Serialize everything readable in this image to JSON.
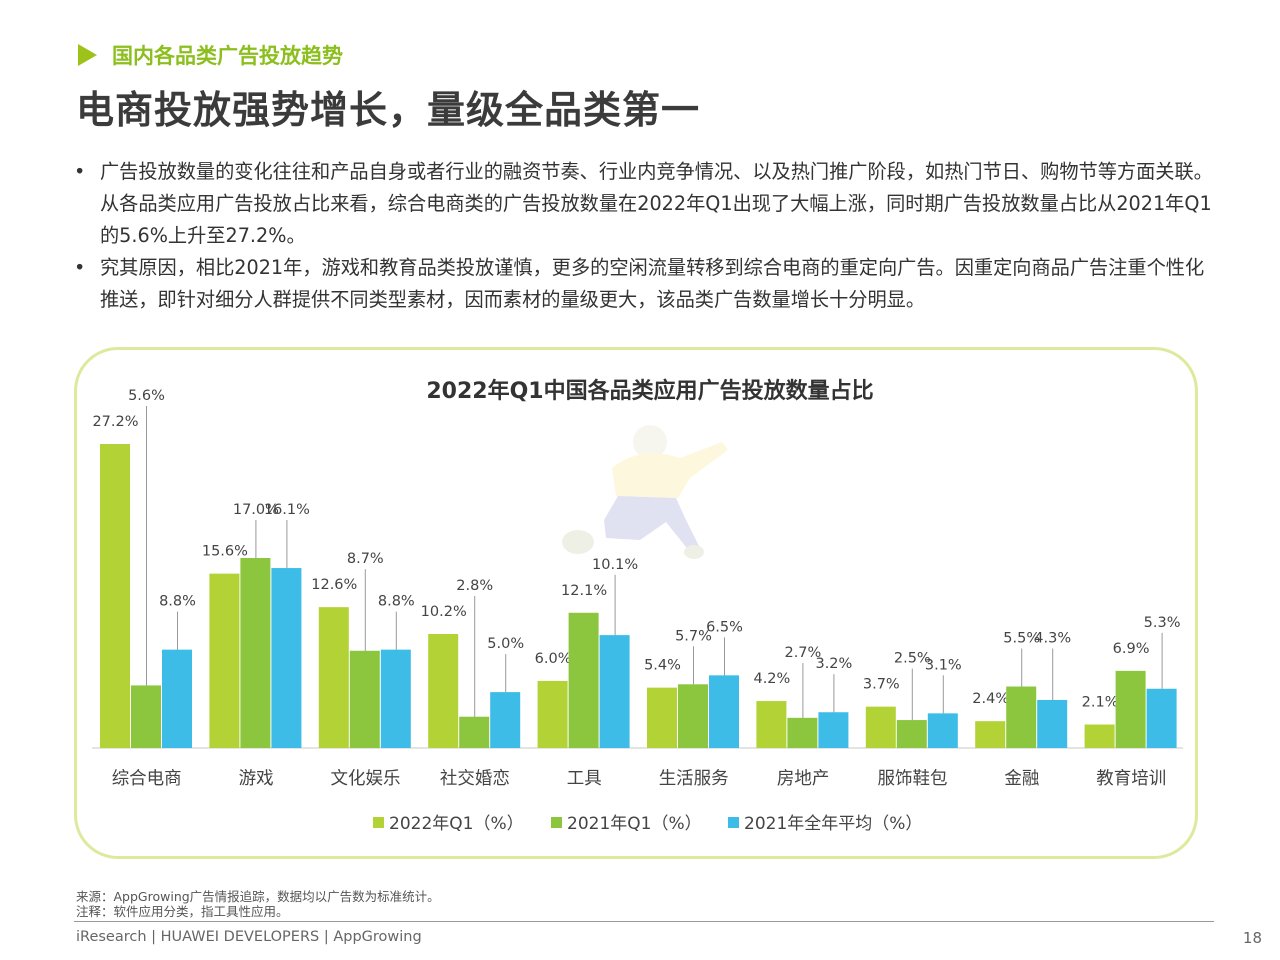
{
  "header": {
    "section_title": "国内各品类广告投放趋势",
    "headline": "电商投放强势增长，量级全品类第一"
  },
  "bullets": [
    {
      "marker": "•",
      "text": "广告投放数量的变化往往和产品自身或者行业的融资节奏、行业内竞争情况、以及热门推广阶段，如热门节日、购物节等方面关联。从各品类应用广告投放占比来看，综合电商类的广告投放数量在2022年Q1出现了大幅上涨，同时期广告投放数量占比从2021年Q1的5.6%上升至27.2%。"
    },
    {
      "marker": "•",
      "text": "究其原因，相比2021年，游戏和教育品类投放谨慎，更多的空闲流量转移到综合电商的重定向广告。因重定向商品广告注重个性化推送，即针对细分人群提供不同类型素材，因而素材的量级更大，该品类广告数量增长十分明显。"
    }
  ],
  "chart_data": {
    "type": "bar",
    "title": "2022年Q1中国各品类应用广告投放数量占比",
    "categories": [
      "综合电商",
      "游戏",
      "文化娱乐",
      "社交婚恋",
      "工具",
      "生活服务",
      "房地产",
      "服饰鞋包",
      "金融",
      "教育培训"
    ],
    "series": [
      {
        "name": "2022年Q1（%）",
        "color": "#b2d235",
        "values": [
          27.2,
          15.6,
          12.6,
          10.2,
          6.0,
          5.4,
          4.2,
          3.7,
          2.4,
          2.1
        ],
        "labels": [
          "27.2%",
          "15.6%",
          "12.6%",
          "10.2%",
          "6.0%",
          "5.4%",
          "4.2%",
          "3.7%",
          "2.4%",
          "2.1%"
        ]
      },
      {
        "name": "2021年Q1（%）",
        "color": "#8cc63f",
        "values": [
          5.6,
          17.0,
          8.7,
          2.8,
          12.1,
          5.7,
          2.7,
          2.5,
          5.5,
          6.9
        ],
        "labels": [
          "5.6%",
          "17.0%",
          "8.7%",
          "2.8%",
          "12.1%",
          "5.7%",
          "2.7%",
          "2.5%",
          "5.5%",
          "6.9%"
        ]
      },
      {
        "name": "2021年全年平均（%）",
        "color": "#3cbce6",
        "values": [
          8.8,
          16.1,
          8.8,
          5.0,
          10.1,
          6.5,
          3.2,
          3.1,
          4.3,
          5.3
        ],
        "labels": [
          "8.8%",
          "16.1%",
          "8.8%",
          "5.0%",
          "10.1%",
          "6.5%",
          "3.2%",
          "3.1%",
          "4.3%",
          "5.3%"
        ]
      }
    ],
    "ylim": [
      0,
      28
    ],
    "legend_position": "bottom",
    "grid": false
  },
  "footer": {
    "source": "来源：AppGrowing广告情报追踪，数据均以广告数为标准统计。",
    "note": "注释：软件应用分类，指工具性应用。",
    "brand": "iResearch | HUAWEI DEVELOPERS | AppGrowing",
    "page_number": "18"
  }
}
